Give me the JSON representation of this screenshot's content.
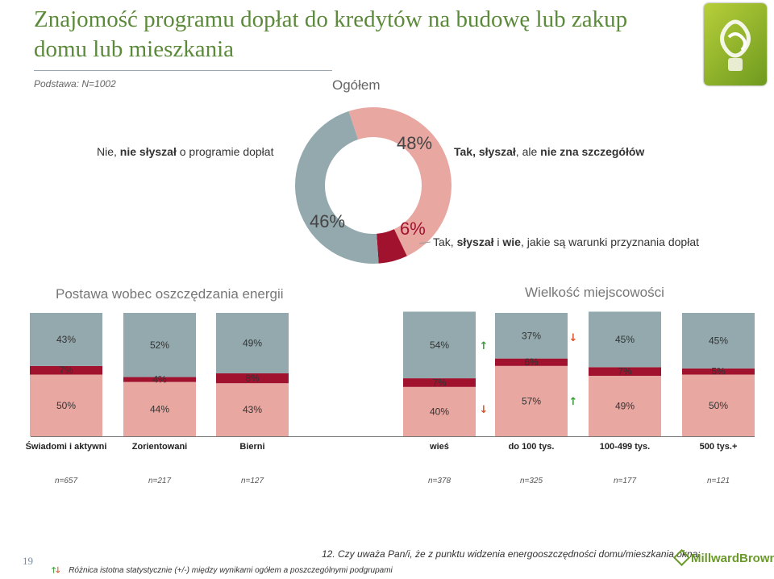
{
  "title": "Znajomość programu dopłat do kredytów na budowę lub zakup domu lub mieszkania",
  "base_note": "Podstawa: N=1002",
  "pie": {
    "heading": "Ogółem",
    "slices": [
      {
        "key": "nie",
        "value": 46,
        "label_pct": "46%",
        "color": "#93a9ad"
      },
      {
        "key": "tak_szczegoly",
        "value": 48,
        "label_pct": "48%",
        "color": "#e8a7a1"
      },
      {
        "key": "tak_wie",
        "value": 6,
        "label_pct": "6%",
        "color": "#a1122e"
      }
    ],
    "label_nie_a": "Nie, ",
    "label_nie_b": "nie słyszał",
    "label_nie_c": " o programie dopłat",
    "label_szcz_a": "Tak, słyszał",
    "label_szcz_b": ", ale ",
    "label_szcz_c": "nie zna szczegółów",
    "label_wie_a": "Tak, ",
    "label_wie_b": "słyszał",
    "label_wie_c": " i ",
    "label_wie_d": "wie",
    "label_wie_e": ", jakie są warunki przyznania dopłat"
  },
  "sections": {
    "left": "Postawa wobec oszczędzania energii",
    "right": "Wielkość miejscowości"
  },
  "colors": {
    "top": "#93a9ad",
    "mid": "#a1122e",
    "bottom": "#e8a7a1",
    "up": "#3a9a3a",
    "down": "#d9542a"
  },
  "chart_data": {
    "type": "bar",
    "stacked": true,
    "categories": [
      "Świadomi i aktywni",
      "Zorientowani",
      "Bierni",
      "wieś",
      "do 100 tys.",
      "100-499 tys.",
      "500 tys.+"
    ],
    "n": [
      "n=657",
      "n=217",
      "n=127",
      "n=378",
      "n=325",
      "n=177",
      "n=121"
    ],
    "series": [
      {
        "name": "Tak, słyszał, ale nie zna szczegółów",
        "values": [
          50,
          44,
          43,
          40,
          57,
          49,
          50
        ]
      },
      {
        "name": "Tak, słyszał i wie",
        "values": [
          7,
          4,
          8,
          7,
          6,
          7,
          5
        ]
      },
      {
        "name": "Nie, nie słyszał",
        "values": [
          43,
          52,
          49,
          54,
          37,
          45,
          45
        ]
      }
    ],
    "labels": {
      "top": [
        "43%",
        "52%",
        "49%",
        "54%",
        "37%",
        "45%",
        "45%"
      ],
      "mid": [
        "7%",
        "4%",
        "8%",
        "7%",
        "6%",
        "7%",
        "5%"
      ],
      "bottom": [
        "50%",
        "44%",
        "43%",
        "40%",
        "57%",
        "49%",
        "50%"
      ]
    },
    "arrows": [
      {
        "category": "wieś",
        "series": "Nie, nie słyszał",
        "dir": "up"
      },
      {
        "category": "wieś",
        "series": "Tak, słyszał, ale nie zna szczegółów",
        "dir": "down"
      },
      {
        "category": "do 100 tys.",
        "series": "Nie, nie słyszał",
        "dir": "down"
      },
      {
        "category": "do 100 tys.",
        "series": "Tak, słyszał, ale nie zna szczegółów",
        "dir": "up"
      }
    ]
  },
  "footer": {
    "page_number": "19",
    "legend": "Różnica istotna statystycznie (+/-) między wynikami ogółem  a poszczególnymi podgrupami",
    "question": "12. Czy uważa Pan/i, że z punktu widzenia energooszczędności domu/mieszkania okna:",
    "brand": "MillwardBrown"
  }
}
